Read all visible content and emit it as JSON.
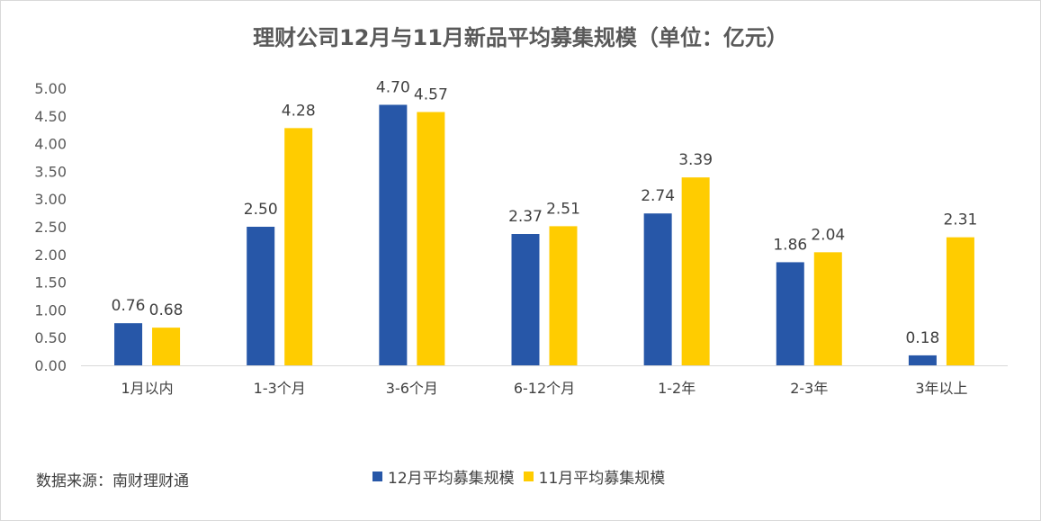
{
  "chart_data": {
    "type": "bar",
    "title": "理财公司12月与11月新品平均募集规模（单位：亿元）",
    "categories": [
      "1月以内",
      "1-3个月",
      "3-6个月",
      "6-12个月",
      "1-2年",
      "2-3年",
      "3年以上"
    ],
    "series": [
      {
        "name": "12月平均募集规模",
        "color": "#2757A8",
        "values": [
          0.76,
          2.5,
          4.7,
          2.37,
          2.74,
          1.86,
          0.18
        ]
      },
      {
        "name": "11月平均募集规模",
        "color": "#FFCC00",
        "values": [
          0.68,
          4.28,
          4.57,
          2.51,
          3.39,
          2.04,
          2.31
        ]
      }
    ],
    "ylim": [
      0,
      5
    ],
    "yticks": [
      "0.00",
      "0.50",
      "1.00",
      "1.50",
      "2.00",
      "2.50",
      "3.00",
      "3.50",
      "4.00",
      "4.50",
      "5.00"
    ],
    "xlabel": "",
    "ylabel": "",
    "grid": false,
    "legend_position": "bottom"
  },
  "source": "数据来源：南财理财通"
}
